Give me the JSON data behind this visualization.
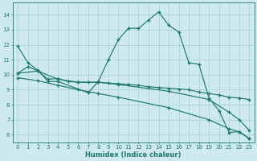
{
  "xlabel": "Humidex (Indice chaleur)",
  "bg_color": "#ceeaee",
  "grid_color": "#b0d8de",
  "line_color": "#1e7a6e",
  "xlim": [
    -0.5,
    23.5
  ],
  "ylim": [
    5.5,
    14.8
  ],
  "xticks": [
    0,
    1,
    2,
    3,
    4,
    5,
    6,
    7,
    8,
    9,
    10,
    11,
    12,
    13,
    14,
    15,
    16,
    17,
    18,
    19,
    20,
    21,
    22,
    23
  ],
  "yticks": [
    6,
    7,
    8,
    9,
    10,
    11,
    12,
    13,
    14
  ],
  "line1_x": [
    0,
    1,
    2,
    3,
    4,
    7,
    8,
    9,
    10,
    11,
    12,
    13,
    14,
    15,
    16,
    17,
    18,
    19,
    20,
    21,
    22,
    23
  ],
  "line1_y": [
    11.9,
    10.8,
    10.3,
    9.55,
    9.55,
    8.8,
    9.55,
    11.0,
    12.35,
    13.1,
    13.1,
    13.65,
    14.2,
    13.3,
    12.85,
    10.8,
    10.7,
    8.45,
    7.6,
    6.15,
    6.2,
    5.75
  ],
  "line2_x": [
    0,
    1,
    2,
    3,
    4,
    5,
    6,
    7,
    8,
    9,
    10,
    11,
    12,
    13,
    14,
    15,
    16,
    17,
    18,
    19,
    20,
    21,
    22,
    23
  ],
  "line2_y": [
    10.1,
    10.55,
    10.25,
    9.7,
    9.75,
    9.55,
    9.5,
    9.5,
    9.5,
    9.45,
    9.4,
    9.35,
    9.3,
    9.2,
    9.15,
    9.1,
    9.05,
    9.0,
    8.85,
    8.75,
    8.65,
    8.5,
    8.45,
    8.35
  ],
  "line3_x": [
    0,
    2,
    4,
    6,
    8,
    10,
    15,
    19,
    21,
    22,
    23
  ],
  "line3_y": [
    10.1,
    10.25,
    9.7,
    9.5,
    9.5,
    9.35,
    8.9,
    8.35,
    7.5,
    7.0,
    6.3
  ],
  "line4_x": [
    0,
    2,
    4,
    6,
    8,
    10,
    15,
    19,
    21,
    22,
    23
  ],
  "line4_y": [
    9.8,
    9.6,
    9.3,
    9.0,
    8.75,
    8.5,
    7.8,
    7.0,
    6.4,
    6.2,
    5.75
  ]
}
